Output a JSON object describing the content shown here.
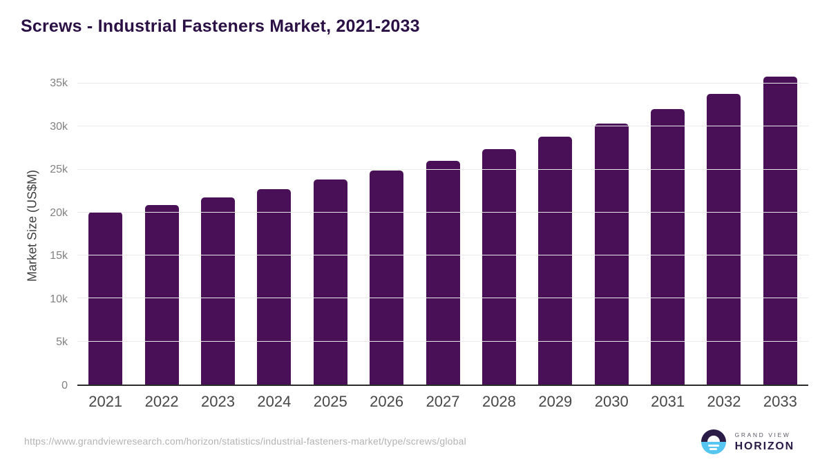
{
  "header": {
    "title": "Screws - Industrial Fasteners Market, 2021-2033"
  },
  "chart_data": {
    "type": "bar",
    "title": "Screws - Industrial Fasteners Market, 2021-2033",
    "categories": [
      "2021",
      "2022",
      "2023",
      "2024",
      "2025",
      "2026",
      "2027",
      "2028",
      "2029",
      "2030",
      "2031",
      "2032",
      "2033"
    ],
    "values": [
      20100,
      20900,
      21750,
      22700,
      23800,
      24900,
      26000,
      27350,
      28800,
      30350,
      32000,
      33800,
      35800
    ],
    "xlabel": "",
    "ylabel": "Market Size (US$M)",
    "ylim": [
      0,
      37000
    ],
    "y_ticks": [
      {
        "label": "0",
        "value": 0
      },
      {
        "label": "5k",
        "value": 5000
      },
      {
        "label": "10k",
        "value": 10000
      },
      {
        "label": "15k",
        "value": 15000
      },
      {
        "label": "20k",
        "value": 20000
      },
      {
        "label": "25k",
        "value": 25000
      },
      {
        "label": "30k",
        "value": 30000
      },
      {
        "label": "35k",
        "value": 35000
      }
    ],
    "grid": "horizontal",
    "legend": false,
    "bar_color": "#491058"
  },
  "colors": {
    "title": "#2a1045",
    "bar": "#491058",
    "gridline": "#e9e9e9",
    "axis_line": "#2b2b2b",
    "x_tick_label": "#474747",
    "y_tick_label": "#818181",
    "source_url": "#b3b3b3",
    "logo_navy": "#2b1b47",
    "logo_blue": "#56c5f2"
  },
  "footer": {
    "source_url": "https://www.grandviewresearch.com/horizon/statistics/industrial-fasteners-market/type/screws/global",
    "logo": {
      "line1": "GRAND VIEW",
      "line2": "HORIZON"
    }
  }
}
